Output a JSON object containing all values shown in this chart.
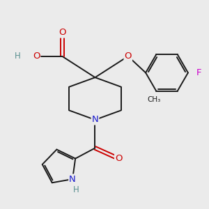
{
  "bg_color": "#ebebeb",
  "bond_color": "#1a1a1a",
  "bond_width": 1.4,
  "atom_colors": {
    "C": "#1a1a1a",
    "H": "#5a9090",
    "O": "#cc0000",
    "N": "#1a1acc",
    "F": "#cc00cc"
  },
  "font_size": 8.5
}
